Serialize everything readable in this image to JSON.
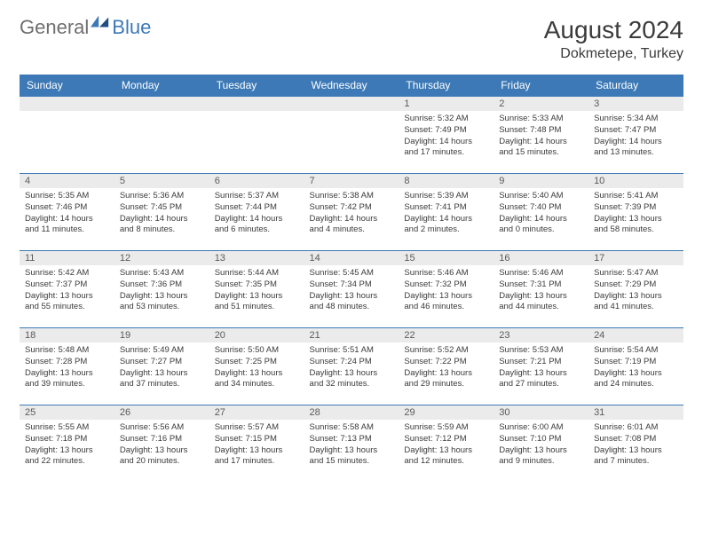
{
  "brand": {
    "word1": "General",
    "word2": "Blue"
  },
  "header": {
    "month": "August 2024",
    "location": "Dokmetepe, Turkey"
  },
  "weekdays": [
    "Sunday",
    "Monday",
    "Tuesday",
    "Wednesday",
    "Thursday",
    "Friday",
    "Saturday"
  ],
  "colors": {
    "accent": "#3c79b6",
    "row": "#ebebeb",
    "text": "#3b3b3b"
  },
  "weeks": [
    [
      {
        "n": "",
        "sr": "",
        "ss": "",
        "dl": ""
      },
      {
        "n": "",
        "sr": "",
        "ss": "",
        "dl": ""
      },
      {
        "n": "",
        "sr": "",
        "ss": "",
        "dl": ""
      },
      {
        "n": "",
        "sr": "",
        "ss": "",
        "dl": ""
      },
      {
        "n": "1",
        "sr": "Sunrise: 5:32 AM",
        "ss": "Sunset: 7:49 PM",
        "dl": "Daylight: 14 hours and 17 minutes."
      },
      {
        "n": "2",
        "sr": "Sunrise: 5:33 AM",
        "ss": "Sunset: 7:48 PM",
        "dl": "Daylight: 14 hours and 15 minutes."
      },
      {
        "n": "3",
        "sr": "Sunrise: 5:34 AM",
        "ss": "Sunset: 7:47 PM",
        "dl": "Daylight: 14 hours and 13 minutes."
      }
    ],
    [
      {
        "n": "4",
        "sr": "Sunrise: 5:35 AM",
        "ss": "Sunset: 7:46 PM",
        "dl": "Daylight: 14 hours and 11 minutes."
      },
      {
        "n": "5",
        "sr": "Sunrise: 5:36 AM",
        "ss": "Sunset: 7:45 PM",
        "dl": "Daylight: 14 hours and 8 minutes."
      },
      {
        "n": "6",
        "sr": "Sunrise: 5:37 AM",
        "ss": "Sunset: 7:44 PM",
        "dl": "Daylight: 14 hours and 6 minutes."
      },
      {
        "n": "7",
        "sr": "Sunrise: 5:38 AM",
        "ss": "Sunset: 7:42 PM",
        "dl": "Daylight: 14 hours and 4 minutes."
      },
      {
        "n": "8",
        "sr": "Sunrise: 5:39 AM",
        "ss": "Sunset: 7:41 PM",
        "dl": "Daylight: 14 hours and 2 minutes."
      },
      {
        "n": "9",
        "sr": "Sunrise: 5:40 AM",
        "ss": "Sunset: 7:40 PM",
        "dl": "Daylight: 14 hours and 0 minutes."
      },
      {
        "n": "10",
        "sr": "Sunrise: 5:41 AM",
        "ss": "Sunset: 7:39 PM",
        "dl": "Daylight: 13 hours and 58 minutes."
      }
    ],
    [
      {
        "n": "11",
        "sr": "Sunrise: 5:42 AM",
        "ss": "Sunset: 7:37 PM",
        "dl": "Daylight: 13 hours and 55 minutes."
      },
      {
        "n": "12",
        "sr": "Sunrise: 5:43 AM",
        "ss": "Sunset: 7:36 PM",
        "dl": "Daylight: 13 hours and 53 minutes."
      },
      {
        "n": "13",
        "sr": "Sunrise: 5:44 AM",
        "ss": "Sunset: 7:35 PM",
        "dl": "Daylight: 13 hours and 51 minutes."
      },
      {
        "n": "14",
        "sr": "Sunrise: 5:45 AM",
        "ss": "Sunset: 7:34 PM",
        "dl": "Daylight: 13 hours and 48 minutes."
      },
      {
        "n": "15",
        "sr": "Sunrise: 5:46 AM",
        "ss": "Sunset: 7:32 PM",
        "dl": "Daylight: 13 hours and 46 minutes."
      },
      {
        "n": "16",
        "sr": "Sunrise: 5:46 AM",
        "ss": "Sunset: 7:31 PM",
        "dl": "Daylight: 13 hours and 44 minutes."
      },
      {
        "n": "17",
        "sr": "Sunrise: 5:47 AM",
        "ss": "Sunset: 7:29 PM",
        "dl": "Daylight: 13 hours and 41 minutes."
      }
    ],
    [
      {
        "n": "18",
        "sr": "Sunrise: 5:48 AM",
        "ss": "Sunset: 7:28 PM",
        "dl": "Daylight: 13 hours and 39 minutes."
      },
      {
        "n": "19",
        "sr": "Sunrise: 5:49 AM",
        "ss": "Sunset: 7:27 PM",
        "dl": "Daylight: 13 hours and 37 minutes."
      },
      {
        "n": "20",
        "sr": "Sunrise: 5:50 AM",
        "ss": "Sunset: 7:25 PM",
        "dl": "Daylight: 13 hours and 34 minutes."
      },
      {
        "n": "21",
        "sr": "Sunrise: 5:51 AM",
        "ss": "Sunset: 7:24 PM",
        "dl": "Daylight: 13 hours and 32 minutes."
      },
      {
        "n": "22",
        "sr": "Sunrise: 5:52 AM",
        "ss": "Sunset: 7:22 PM",
        "dl": "Daylight: 13 hours and 29 minutes."
      },
      {
        "n": "23",
        "sr": "Sunrise: 5:53 AM",
        "ss": "Sunset: 7:21 PM",
        "dl": "Daylight: 13 hours and 27 minutes."
      },
      {
        "n": "24",
        "sr": "Sunrise: 5:54 AM",
        "ss": "Sunset: 7:19 PM",
        "dl": "Daylight: 13 hours and 24 minutes."
      }
    ],
    [
      {
        "n": "25",
        "sr": "Sunrise: 5:55 AM",
        "ss": "Sunset: 7:18 PM",
        "dl": "Daylight: 13 hours and 22 minutes."
      },
      {
        "n": "26",
        "sr": "Sunrise: 5:56 AM",
        "ss": "Sunset: 7:16 PM",
        "dl": "Daylight: 13 hours and 20 minutes."
      },
      {
        "n": "27",
        "sr": "Sunrise: 5:57 AM",
        "ss": "Sunset: 7:15 PM",
        "dl": "Daylight: 13 hours and 17 minutes."
      },
      {
        "n": "28",
        "sr": "Sunrise: 5:58 AM",
        "ss": "Sunset: 7:13 PM",
        "dl": "Daylight: 13 hours and 15 minutes."
      },
      {
        "n": "29",
        "sr": "Sunrise: 5:59 AM",
        "ss": "Sunset: 7:12 PM",
        "dl": "Daylight: 13 hours and 12 minutes."
      },
      {
        "n": "30",
        "sr": "Sunrise: 6:00 AM",
        "ss": "Sunset: 7:10 PM",
        "dl": "Daylight: 13 hours and 9 minutes."
      },
      {
        "n": "31",
        "sr": "Sunrise: 6:01 AM",
        "ss": "Sunset: 7:08 PM",
        "dl": "Daylight: 13 hours and 7 minutes."
      }
    ]
  ]
}
